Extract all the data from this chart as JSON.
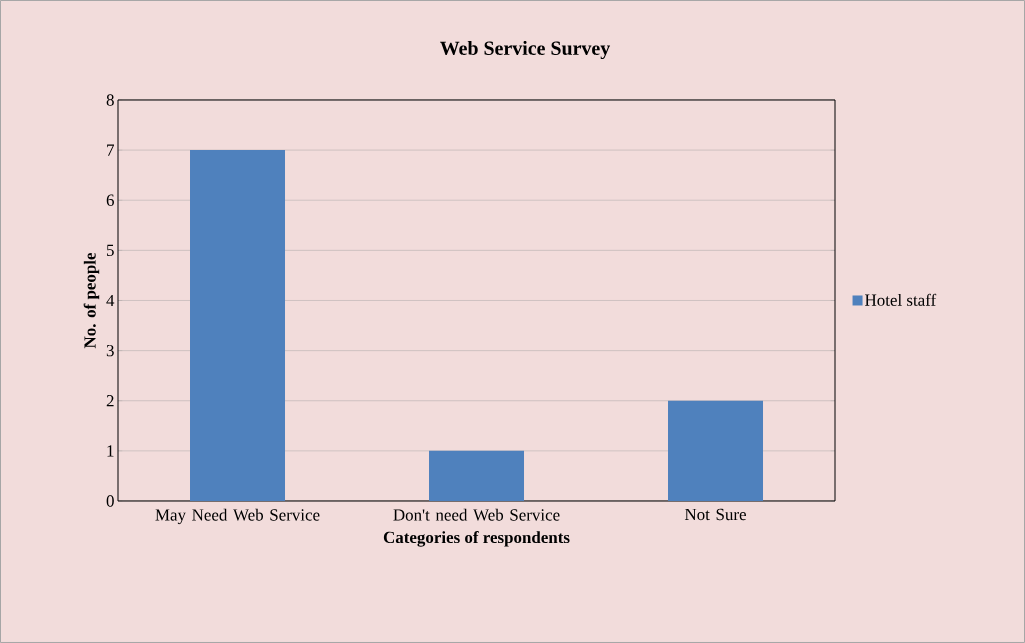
{
  "chart_data": {
    "type": "bar",
    "title": "Web Service Survey",
    "xlabel": "Categories of respondents",
    "ylabel": "No. of people",
    "categories": [
      "May Need Web Service",
      "Don't need Web Service",
      "Not Sure"
    ],
    "series": [
      {
        "name": "Hotel staff",
        "color": "#4f81bd",
        "values": [
          7,
          1,
          2
        ]
      }
    ],
    "ylim": [
      0,
      8
    ],
    "yticks": [
      0,
      1,
      2,
      3,
      4,
      5,
      6,
      7,
      8
    ],
    "grid": "y",
    "legend": "right"
  }
}
